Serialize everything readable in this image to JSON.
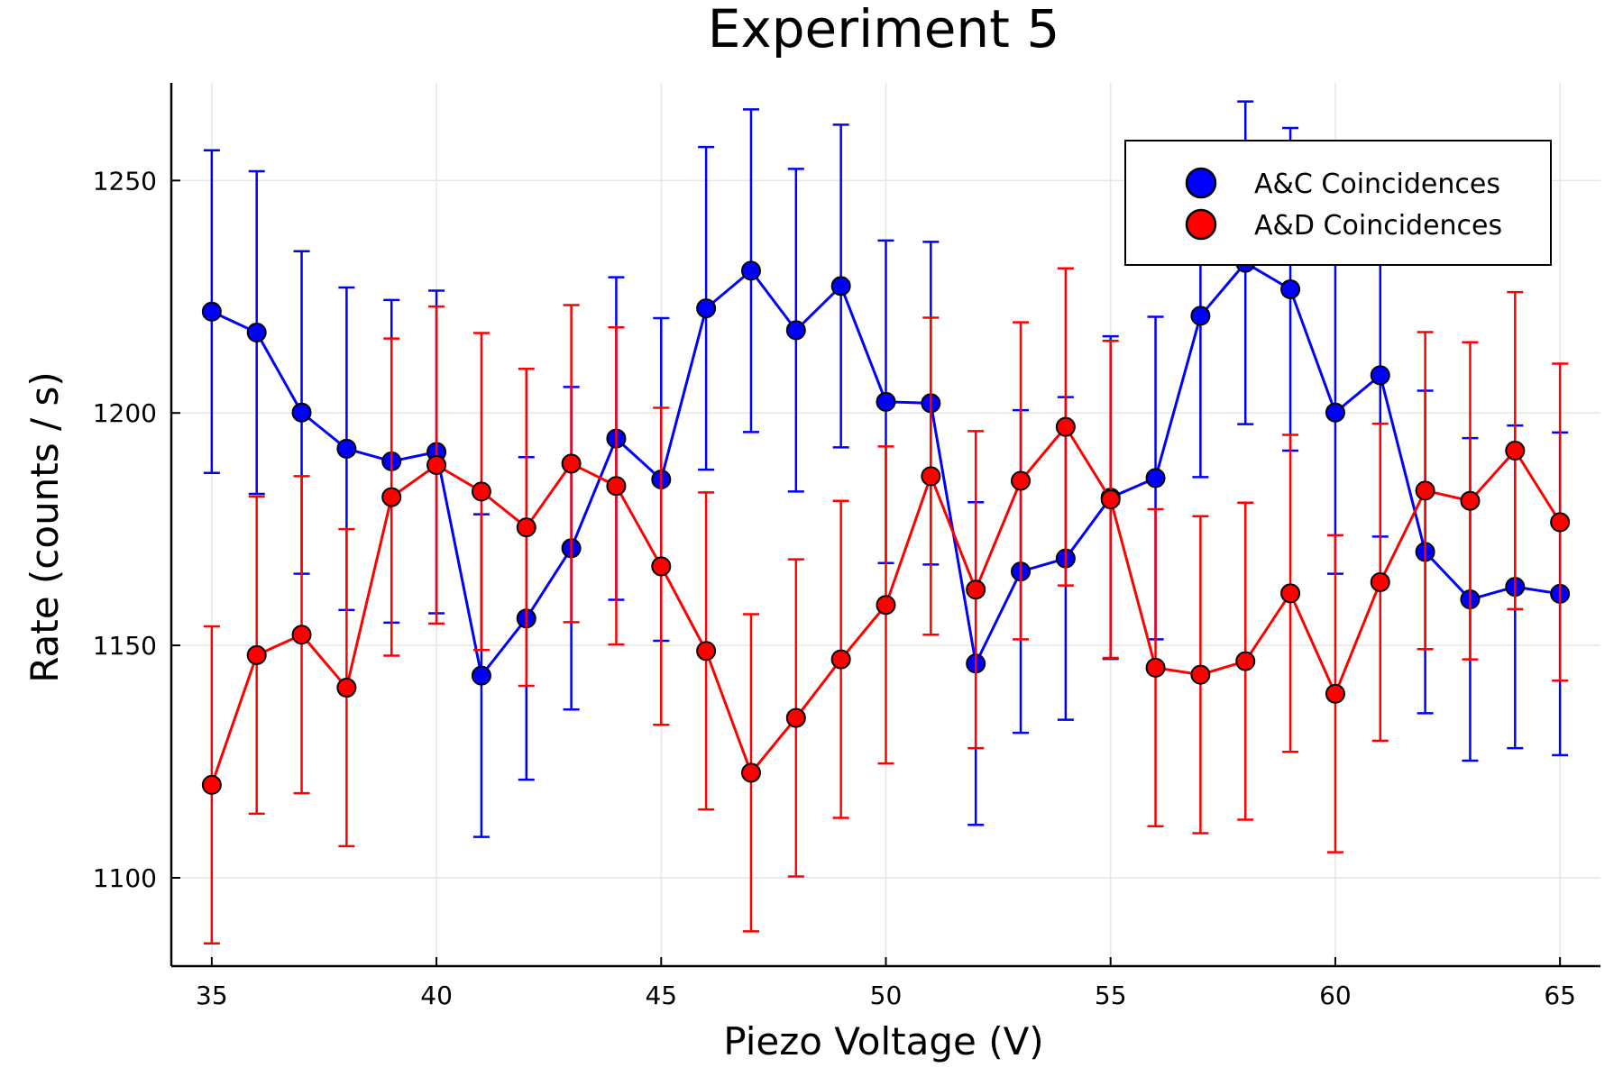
{
  "chart_data": {
    "type": "scatter",
    "title": "Experiment 5",
    "xlabel": "Piezo Voltage (V)",
    "ylabel": "Rate (counts / s)",
    "xlim": [
      34.1,
      65.9
    ],
    "ylim": [
      1081,
      1271
    ],
    "x_ticks": [
      35,
      40,
      45,
      50,
      55,
      60,
      65
    ],
    "y_ticks": [
      1100,
      1150,
      1200,
      1250
    ],
    "grid": true,
    "legend_position": "top-right",
    "x": [
      35,
      36,
      37,
      38,
      39,
      40,
      41,
      42,
      43,
      44,
      45,
      46,
      47,
      48,
      49,
      50,
      51,
      52,
      53,
      54,
      55,
      56,
      57,
      58,
      59,
      60,
      61,
      62,
      63,
      64,
      65
    ],
    "series": [
      {
        "name": "A&C Coincidences",
        "color": "#0000ff",
        "values": [
          1221.8,
          1217.3,
          1200.1,
          1192.3,
          1189.6,
          1191.6,
          1143.5,
          1155.8,
          1170.9,
          1194.5,
          1185.7,
          1222.5,
          1230.6,
          1217.8,
          1227.3,
          1202.4,
          1202.1,
          1146.1,
          1165.9,
          1168.7,
          1181.8,
          1186.0,
          1220.9,
          1232.3,
          1226.6,
          1200.1,
          1208.1,
          1170.1,
          1159.9,
          1162.6,
          1161.1
        ],
        "error": 34.7
      },
      {
        "name": "A&D Coincidences",
        "color": "#ff0000",
        "values": [
          1120.0,
          1147.9,
          1152.3,
          1140.9,
          1181.9,
          1188.8,
          1183.1,
          1175.4,
          1189.1,
          1184.3,
          1167.0,
          1148.8,
          1122.6,
          1134.4,
          1147.0,
          1158.7,
          1186.4,
          1162.0,
          1185.4,
          1197.0,
          1181.4,
          1145.2,
          1143.7,
          1146.6,
          1161.2,
          1139.6,
          1163.6,
          1183.3,
          1181.1,
          1191.9,
          1176.5
        ],
        "error": 34.1
      }
    ]
  }
}
